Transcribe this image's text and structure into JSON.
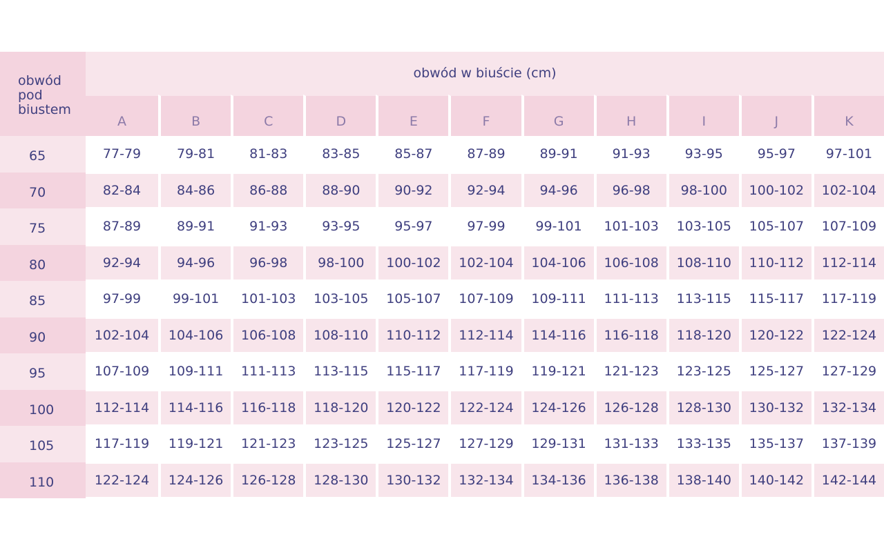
{
  "corner_label": "obwód pod biustem",
  "header_title": "obwód w biuście (cm)",
  "cups": [
    "A",
    "B",
    "C",
    "D",
    "E",
    "F",
    "G",
    "H",
    "I",
    "J",
    "K"
  ],
  "rows": [
    {
      "band": "65",
      "values": [
        "77-79",
        "79-81",
        "81-83",
        "83-85",
        "85-87",
        "87-89",
        "89-91",
        "91-93",
        "93-95",
        "95-97",
        "97-101"
      ]
    },
    {
      "band": "70",
      "values": [
        "82-84",
        "84-86",
        "86-88",
        "88-90",
        "90-92",
        "92-94",
        "94-96",
        "96-98",
        "98-100",
        "100-102",
        "102-104"
      ]
    },
    {
      "band": "75",
      "values": [
        "87-89",
        "89-91",
        "91-93",
        "93-95",
        "95-97",
        "97-99",
        "99-101",
        "101-103",
        "103-105",
        "105-107",
        "107-109"
      ]
    },
    {
      "band": "80",
      "values": [
        "92-94",
        "94-96",
        "96-98",
        "98-100",
        "100-102",
        "102-104",
        "104-106",
        "106-108",
        "108-110",
        "110-112",
        "112-114"
      ]
    },
    {
      "band": "85",
      "values": [
        "97-99",
        "99-101",
        "101-103",
        "103-105",
        "105-107",
        "107-109",
        "109-111",
        "111-113",
        "113-115",
        "115-117",
        "117-119"
      ]
    },
    {
      "band": "90",
      "values": [
        "102-104",
        "104-106",
        "106-108",
        "108-110",
        "110-112",
        "112-114",
        "114-116",
        "116-118",
        "118-120",
        "120-122",
        "122-124"
      ]
    },
    {
      "band": "95",
      "values": [
        "107-109",
        "109-111",
        "111-113",
        "113-115",
        "115-117",
        "117-119",
        "119-121",
        "121-123",
        "123-125",
        "125-127",
        "127-129"
      ]
    },
    {
      "band": "100",
      "values": [
        "112-114",
        "114-116",
        "116-118",
        "118-120",
        "120-122",
        "122-124",
        "124-126",
        "126-128",
        "128-130",
        "130-132",
        "132-134"
      ]
    },
    {
      "band": "105",
      "values": [
        "117-119",
        "119-121",
        "121-123",
        "123-125",
        "125-127",
        "127-129",
        "129-131",
        "131-133",
        "133-135",
        "135-137",
        "137-139"
      ]
    },
    {
      "band": "110",
      "values": [
        "122-124",
        "124-126",
        "126-128",
        "128-130",
        "130-132",
        "132-134",
        "134-136",
        "136-138",
        "138-140",
        "140-142",
        "142-144"
      ]
    }
  ],
  "colors": {
    "text": "#3f3f7f",
    "pink_dark": "#f4d4df",
    "pink_light": "#f8e5eb"
  }
}
